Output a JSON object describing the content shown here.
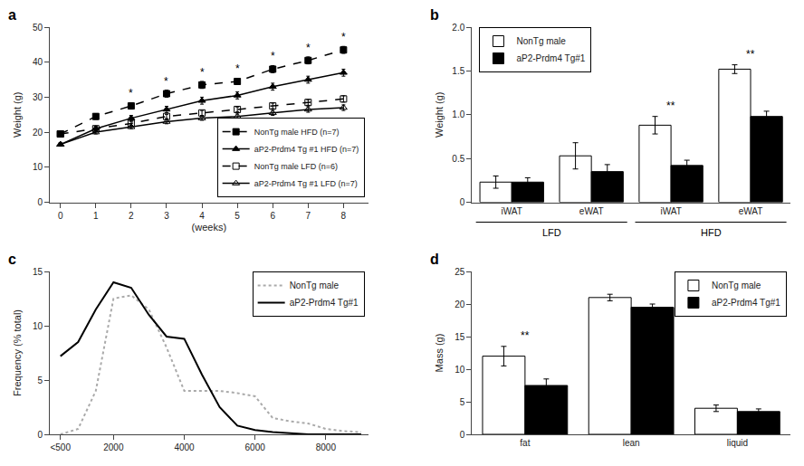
{
  "chart_data": [
    {
      "type": "line",
      "title": "a",
      "xlabel": "(weeks)",
      "ylabel": "Weight (g)",
      "x": [
        0,
        1,
        2,
        3,
        4,
        5,
        6,
        7,
        8
      ],
      "xlim": [
        -0.3,
        8.7
      ],
      "xticks": [
        0,
        1,
        2,
        3,
        4,
        5,
        6,
        7,
        8
      ],
      "ylim": [
        0,
        50
      ],
      "yticks": [
        0,
        10,
        20,
        30,
        40,
        50
      ],
      "grid": false,
      "legend": "lower right",
      "series": [
        {
          "name": "NonTg male HFD (n=7)",
          "color": "#000000",
          "marker": "square",
          "line_style": "dash",
          "values": [
            19.5,
            24.5,
            27.5,
            31.0,
            33.5,
            34.5,
            38.0,
            40.5,
            43.5
          ],
          "error": [
            0.5,
            0.8,
            0.9,
            1.0,
            1.0,
            0.9,
            1.0,
            1.0,
            1.0
          ]
        },
        {
          "name": "aP2-Prdm4 Tg #1 HFD (n=7)",
          "color": "#000000",
          "marker": "triangle-up",
          "line_style": "solid",
          "values": [
            16.5,
            21.0,
            24.0,
            26.5,
            29.0,
            30.5,
            33.0,
            35.0,
            37.0
          ],
          "error": [
            0.5,
            0.7,
            0.8,
            0.9,
            1.0,
            1.0,
            1.0,
            1.0,
            1.0
          ]
        },
        {
          "name": "NonTg male LFD (n=6)",
          "color": "#000000",
          "marker": "square-open",
          "line_style": "dash",
          "values": [
            19.5,
            21.0,
            22.5,
            24.5,
            25.5,
            26.5,
            27.5,
            28.5,
            29.5
          ],
          "error": [
            0.5,
            0.5,
            0.6,
            0.6,
            0.7,
            0.7,
            0.8,
            0.8,
            0.9
          ]
        },
        {
          "name": "aP2-Prdm4 Tg #1 LFD (n=7)",
          "color": "#000000",
          "marker": "triangle-up-open",
          "line_style": "solid",
          "values": [
            16.5,
            20.0,
            21.5,
            23.0,
            24.0,
            24.5,
            25.5,
            26.5,
            27.0
          ],
          "error": [
            0.4,
            0.5,
            0.5,
            0.6,
            0.6,
            0.7,
            0.7,
            0.8,
            0.8
          ]
        }
      ],
      "annotations": [
        {
          "text": "*",
          "x": 2
        },
        {
          "text": "*",
          "x": 3
        },
        {
          "text": "*",
          "x": 4
        },
        {
          "text": "*",
          "x": 5
        },
        {
          "text": "*",
          "x": 6
        },
        {
          "text": "*",
          "x": 7
        },
        {
          "text": "*",
          "x": 8
        }
      ]
    },
    {
      "type": "bar",
      "title": "b",
      "ylabel": "Weight (g)",
      "categories": [
        "iWAT",
        "eWAT",
        "iWAT",
        "eWAT"
      ],
      "groups": [
        "LFD",
        "LFD",
        "HFD",
        "HFD"
      ],
      "ylim": [
        0,
        2.0
      ],
      "yticks": [
        0,
        0.5,
        {
          "value": 1.0,
          "label": "1.0"
        },
        1.5,
        {
          "value": 2.0,
          "label": "2.0"
        }
      ],
      "grid": false,
      "legend": "upper left",
      "series": [
        {
          "name": "NonTg male",
          "color": "#ffffff",
          "values": [
            0.23,
            0.53,
            0.88,
            1.52
          ],
          "error": [
            0.07,
            0.15,
            0.1,
            0.05
          ]
        },
        {
          "name": "aP2-Prdm4 Tg#1",
          "color": "#000000",
          "values": [
            0.23,
            0.35,
            0.42,
            0.98
          ],
          "error": [
            0.05,
            0.08,
            0.06,
            0.06
          ]
        }
      ],
      "annotations": [
        {
          "text": "**",
          "x": 2
        },
        {
          "text": "**",
          "x": 3
        }
      ]
    },
    {
      "type": "line",
      "title": "c",
      "ylabel": "Frequency (% total)",
      "x": [
        500,
        1000,
        1500,
        2000,
        2500,
        3000,
        3500,
        4000,
        4500,
        5000,
        5500,
        6000,
        6500,
        7000,
        7500,
        8000,
        8500,
        9000
      ],
      "xlim": [
        200,
        9200
      ],
      "xticks": [
        {
          "value": 500,
          "label": "<500"
        },
        2000,
        4000,
        6000,
        8000
      ],
      "ylim": [
        0,
        15
      ],
      "yticks": [
        0,
        5,
        10,
        15
      ],
      "grid": false,
      "legend": "upper right",
      "series": [
        {
          "name": "NonTg male",
          "color": "#aaaaaa",
          "line_style": "dot",
          "values": [
            0.0,
            0.5,
            4.0,
            12.5,
            12.8,
            11.5,
            8.0,
            4.0,
            4.0,
            4.0,
            3.8,
            3.5,
            1.5,
            1.2,
            1.0,
            0.5,
            0.3,
            0.2
          ]
        },
        {
          "name": "aP2-Prdm4 Tg#1",
          "color": "#000000",
          "line_style": "solid",
          "values": [
            7.2,
            8.5,
            11.5,
            14.0,
            13.5,
            11.0,
            9.0,
            8.8,
            5.5,
            2.5,
            0.8,
            0.4,
            0.2,
            0.1,
            0.0,
            0.0,
            0.0,
            0.0
          ]
        }
      ]
    },
    {
      "type": "bar",
      "title": "d",
      "ylabel": "Mass (g)",
      "categories": [
        "fat",
        "lean",
        "liquid"
      ],
      "ylim": [
        0,
        25
      ],
      "yticks": [
        0,
        5,
        10,
        15,
        20,
        25
      ],
      "grid": false,
      "legend": "upper right",
      "series": [
        {
          "name": "NonTg male",
          "color": "#ffffff",
          "values": [
            12.0,
            21.0,
            4.0
          ],
          "error": [
            1.5,
            0.5,
            0.5
          ]
        },
        {
          "name": "aP2-Prdm4 Tg#1",
          "color": "#000000",
          "values": [
            7.5,
            19.5,
            3.5
          ],
          "error": [
            1.0,
            0.5,
            0.4
          ]
        }
      ],
      "annotations": [
        {
          "text": "**",
          "x": 0
        }
      ]
    }
  ]
}
